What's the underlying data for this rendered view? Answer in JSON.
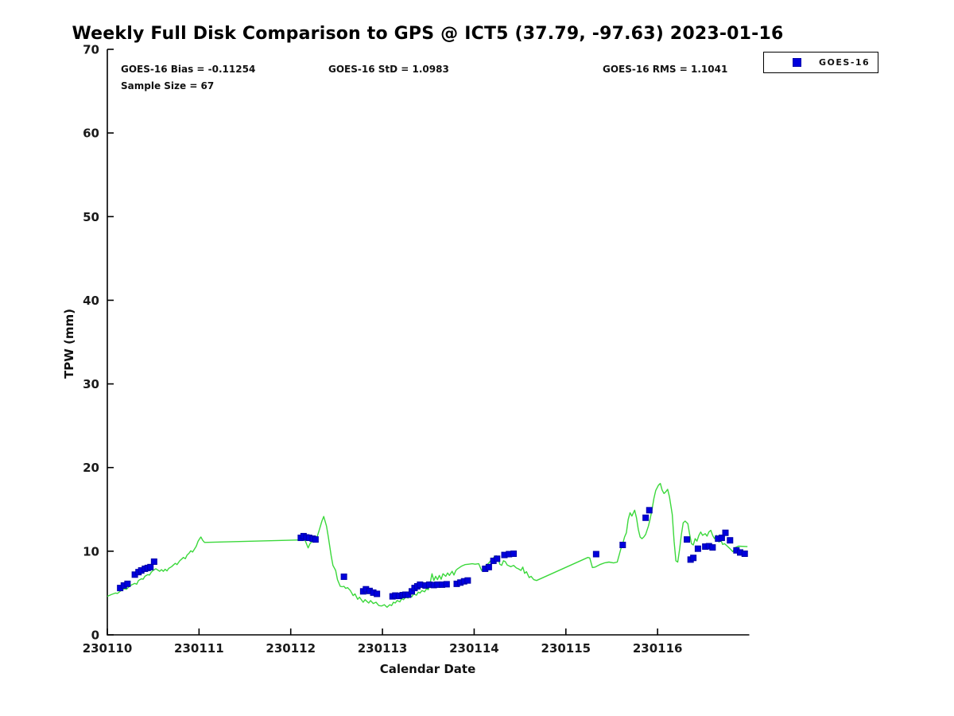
{
  "title": "Weekly Full Disk Comparison to GPS @ ICT5 (37.79, -97.63) 2023-01-16",
  "stats": {
    "bias": "GOES-16 Bias = -0.11254",
    "std": "GOES-16 StD = 1.0983",
    "rms": "GOES-16 RMS = 1.1041",
    "sample": "Sample Size = 67"
  },
  "legend": {
    "label": "GOES-16"
  },
  "colors": {
    "gps_line": "#3bd83b",
    "goes_marker_fill": "#0000dd",
    "goes_marker_edge": "#0000aa",
    "axis": "#000000",
    "tick_text": "#1a1a1a"
  },
  "chart_data": {
    "type": "line+scatter",
    "title": "Weekly Full Disk Comparison to GPS @ ICT5 (37.79, -97.63) 2023-01-16",
    "xlabel": "Calendar Date",
    "ylabel": "TPW (mm)",
    "xlim": [
      0,
      7
    ],
    "ylim": [
      0,
      70
    ],
    "y_ticks": [
      0,
      10,
      20,
      30,
      40,
      50,
      60,
      70
    ],
    "x_tick_positions": [
      0,
      1,
      2,
      3,
      4,
      5,
      6
    ],
    "x_tick_labels": [
      "230110",
      "230111",
      "230112",
      "230113",
      "230114",
      "230115",
      "230116"
    ],
    "grid": false,
    "legend_position": "top-right-outside",
    "annotations": [
      "GOES-16 Bias = -0.11254",
      "GOES-16 StD = 1.0983",
      "GOES-16 RMS = 1.1041",
      "Sample Size = 67"
    ],
    "x_unit": "days since 230110 00Z (tick value = YYMMDD)",
    "series": [
      {
        "name": "GPS",
        "type": "line",
        "color": "#3bd83b",
        "points": [
          [
            0.0,
            4.6
          ],
          [
            0.04,
            4.8
          ],
          [
            0.09,
            5.0
          ],
          [
            0.11,
            4.95
          ],
          [
            0.15,
            5.3
          ],
          [
            0.18,
            5.5
          ],
          [
            0.21,
            5.45
          ],
          [
            0.24,
            5.8
          ],
          [
            0.27,
            6.0
          ],
          [
            0.3,
            6.15
          ],
          [
            0.32,
            6.05
          ],
          [
            0.34,
            6.5
          ],
          [
            0.37,
            6.7
          ],
          [
            0.39,
            6.65
          ],
          [
            0.41,
            7.0
          ],
          [
            0.44,
            7.2
          ],
          [
            0.46,
            7.15
          ],
          [
            0.48,
            7.5
          ],
          [
            0.5,
            7.7
          ],
          [
            0.53,
            7.9
          ],
          [
            0.55,
            7.75
          ],
          [
            0.57,
            7.6
          ],
          [
            0.59,
            7.8
          ],
          [
            0.61,
            7.6
          ],
          [
            0.63,
            7.85
          ],
          [
            0.65,
            7.65
          ],
          [
            0.67,
            7.95
          ],
          [
            0.7,
            8.15
          ],
          [
            0.72,
            8.35
          ],
          [
            0.74,
            8.55
          ],
          [
            0.76,
            8.4
          ],
          [
            0.79,
            8.85
          ],
          [
            0.81,
            9.05
          ],
          [
            0.83,
            9.25
          ],
          [
            0.85,
            9.1
          ],
          [
            0.87,
            9.55
          ],
          [
            0.89,
            9.75
          ],
          [
            0.91,
            10.05
          ],
          [
            0.93,
            9.9
          ],
          [
            0.95,
            10.25
          ],
          [
            0.97,
            10.6
          ],
          [
            0.99,
            11.2
          ],
          [
            1.01,
            11.55
          ],
          [
            1.02,
            11.7
          ],
          [
            1.04,
            11.3
          ],
          [
            1.06,
            11.05
          ],
          [
            2.11,
            11.35
          ],
          [
            2.14,
            11.5
          ],
          [
            2.16,
            11.2
          ],
          [
            2.19,
            10.4
          ],
          [
            2.21,
            10.9
          ],
          [
            2.24,
            11.25
          ],
          [
            2.28,
            11.45
          ],
          [
            2.31,
            12.5
          ],
          [
            2.34,
            13.6
          ],
          [
            2.36,
            14.15
          ],
          [
            2.39,
            13.0
          ],
          [
            2.41,
            11.7
          ],
          [
            2.44,
            9.5
          ],
          [
            2.46,
            8.3
          ],
          [
            2.49,
            7.7
          ],
          [
            2.51,
            6.6
          ],
          [
            2.54,
            5.8
          ],
          [
            2.56,
            5.75
          ],
          [
            2.58,
            5.8
          ],
          [
            2.6,
            5.55
          ],
          [
            2.62,
            5.65
          ],
          [
            2.65,
            5.3
          ],
          [
            2.68,
            4.7
          ],
          [
            2.7,
            4.9
          ],
          [
            2.73,
            4.25
          ],
          [
            2.75,
            4.5
          ],
          [
            2.79,
            3.9
          ],
          [
            2.81,
            4.2
          ],
          [
            2.85,
            3.8
          ],
          [
            2.87,
            4.1
          ],
          [
            2.9,
            3.75
          ],
          [
            2.93,
            3.9
          ],
          [
            2.96,
            3.5
          ],
          [
            2.99,
            3.45
          ],
          [
            3.02,
            3.6
          ],
          [
            3.05,
            3.3
          ],
          [
            3.08,
            3.6
          ],
          [
            3.1,
            3.5
          ],
          [
            3.12,
            3.9
          ],
          [
            3.14,
            3.8
          ],
          [
            3.16,
            4.1
          ],
          [
            3.19,
            3.95
          ],
          [
            3.21,
            4.35
          ],
          [
            3.23,
            4.2
          ],
          [
            3.25,
            4.5
          ],
          [
            3.28,
            4.4
          ],
          [
            3.3,
            4.7
          ],
          [
            3.32,
            4.55
          ],
          [
            3.34,
            4.9
          ],
          [
            3.37,
            4.75
          ],
          [
            3.39,
            5.1
          ],
          [
            3.41,
            5.0
          ],
          [
            3.43,
            5.3
          ],
          [
            3.46,
            5.15
          ],
          [
            3.48,
            5.5
          ],
          [
            3.5,
            5.4
          ],
          [
            3.52,
            6.2
          ],
          [
            3.54,
            7.3
          ],
          [
            3.56,
            6.5
          ],
          [
            3.58,
            7.0
          ],
          [
            3.6,
            6.6
          ],
          [
            3.62,
            7.1
          ],
          [
            3.64,
            6.65
          ],
          [
            3.66,
            7.3
          ],
          [
            3.69,
            7.0
          ],
          [
            3.71,
            7.4
          ],
          [
            3.73,
            7.1
          ],
          [
            3.76,
            7.6
          ],
          [
            3.78,
            7.15
          ],
          [
            3.8,
            7.7
          ],
          [
            3.82,
            7.9
          ],
          [
            3.86,
            8.2
          ],
          [
            3.9,
            8.4
          ],
          [
            3.94,
            8.45
          ],
          [
            3.98,
            8.5
          ],
          [
            4.01,
            8.45
          ],
          [
            4.05,
            8.5
          ],
          [
            4.08,
            7.7
          ],
          [
            4.1,
            7.95
          ],
          [
            4.13,
            8.3
          ],
          [
            4.16,
            8.6
          ],
          [
            4.19,
            9.0
          ],
          [
            4.22,
            9.3
          ],
          [
            4.24,
            9.45
          ],
          [
            4.26,
            9.35
          ],
          [
            4.28,
            8.45
          ],
          [
            4.3,
            8.3
          ],
          [
            4.32,
            8.85
          ],
          [
            4.34,
            8.75
          ],
          [
            4.36,
            8.35
          ],
          [
            4.38,
            8.25
          ],
          [
            4.4,
            8.15
          ],
          [
            4.43,
            8.3
          ],
          [
            4.46,
            8.0
          ],
          [
            4.48,
            7.9
          ],
          [
            4.51,
            7.7
          ],
          [
            4.53,
            8.1
          ],
          [
            4.55,
            7.35
          ],
          [
            4.57,
            7.55
          ],
          [
            4.6,
            6.85
          ],
          [
            4.62,
            7.0
          ],
          [
            4.65,
            6.6
          ],
          [
            4.68,
            6.5
          ],
          [
            5.24,
            9.25
          ],
          [
            5.26,
            9.2
          ],
          [
            5.29,
            8.05
          ],
          [
            5.32,
            8.1
          ],
          [
            5.37,
            8.4
          ],
          [
            5.42,
            8.6
          ],
          [
            5.47,
            8.7
          ],
          [
            5.52,
            8.6
          ],
          [
            5.56,
            8.7
          ],
          [
            5.6,
            10.3
          ],
          [
            5.62,
            10.9
          ],
          [
            5.64,
            11.7
          ],
          [
            5.66,
            12.2
          ],
          [
            5.68,
            13.8
          ],
          [
            5.7,
            14.6
          ],
          [
            5.72,
            14.2
          ],
          [
            5.75,
            14.9
          ],
          [
            5.77,
            14.0
          ],
          [
            5.79,
            12.6
          ],
          [
            5.81,
            11.7
          ],
          [
            5.83,
            11.5
          ],
          [
            5.85,
            11.7
          ],
          [
            5.87,
            12.0
          ],
          [
            5.9,
            13.0
          ],
          [
            5.92,
            13.9
          ],
          [
            5.94,
            15.0
          ],
          [
            5.96,
            16.3
          ],
          [
            5.98,
            17.25
          ],
          [
            6.01,
            17.9
          ],
          [
            6.03,
            18.1
          ],
          [
            6.05,
            17.3
          ],
          [
            6.07,
            16.9
          ],
          [
            6.09,
            17.1
          ],
          [
            6.11,
            17.4
          ],
          [
            6.13,
            16.5
          ],
          [
            6.16,
            14.4
          ],
          [
            6.18,
            11.2
          ],
          [
            6.2,
            8.85
          ],
          [
            6.22,
            8.7
          ],
          [
            6.24,
            10.2
          ],
          [
            6.26,
            12.0
          ],
          [
            6.28,
            13.4
          ],
          [
            6.3,
            13.6
          ],
          [
            6.33,
            13.3
          ],
          [
            6.35,
            12.0
          ],
          [
            6.37,
            10.9
          ],
          [
            6.39,
            10.75
          ],
          [
            6.41,
            11.5
          ],
          [
            6.43,
            11.2
          ],
          [
            6.45,
            11.9
          ],
          [
            6.47,
            12.3
          ],
          [
            6.49,
            11.9
          ],
          [
            6.52,
            12.1
          ],
          [
            6.54,
            11.8
          ],
          [
            6.56,
            12.3
          ],
          [
            6.58,
            12.5
          ],
          [
            6.6,
            11.9
          ],
          [
            6.62,
            11.5
          ],
          [
            6.64,
            11.9
          ],
          [
            6.67,
            11.1
          ],
          [
            6.69,
            11.35
          ],
          [
            6.71,
            10.8
          ],
          [
            6.73,
            10.9
          ],
          [
            6.76,
            10.6
          ],
          [
            6.79,
            10.3
          ],
          [
            6.82,
            9.95
          ],
          [
            6.85,
            10.45
          ],
          [
            6.88,
            10.6
          ],
          [
            6.98,
            10.55
          ]
        ]
      },
      {
        "name": "GOES-16",
        "type": "scatter",
        "marker": "square",
        "color": "#0000dd",
        "sample_size": 67,
        "points": [
          [
            0.14,
            5.6
          ],
          [
            0.18,
            5.9
          ],
          [
            0.22,
            6.1
          ],
          [
            0.3,
            7.2
          ],
          [
            0.34,
            7.5
          ],
          [
            0.37,
            7.7
          ],
          [
            0.41,
            7.9
          ],
          [
            0.44,
            8.0
          ],
          [
            0.47,
            8.1
          ],
          [
            0.51,
            8.75
          ],
          [
            2.11,
            11.6
          ],
          [
            2.14,
            11.8
          ],
          [
            2.17,
            11.65
          ],
          [
            2.2,
            11.6
          ],
          [
            2.24,
            11.5
          ],
          [
            2.27,
            11.4
          ],
          [
            2.58,
            6.95
          ],
          [
            2.79,
            5.2
          ],
          [
            2.82,
            5.45
          ],
          [
            2.86,
            5.25
          ],
          [
            2.9,
            5.05
          ],
          [
            2.94,
            4.9
          ],
          [
            3.11,
            4.6
          ],
          [
            3.14,
            4.7
          ],
          [
            3.18,
            4.65
          ],
          [
            3.22,
            4.75
          ],
          [
            3.25,
            4.8
          ],
          [
            3.28,
            4.8
          ],
          [
            3.32,
            5.2
          ],
          [
            3.35,
            5.6
          ],
          [
            3.38,
            5.8
          ],
          [
            3.41,
            6.0
          ],
          [
            3.47,
            5.9
          ],
          [
            3.51,
            6.0
          ],
          [
            3.56,
            5.95
          ],
          [
            3.6,
            6.0
          ],
          [
            3.65,
            6.0
          ],
          [
            3.7,
            6.05
          ],
          [
            3.81,
            6.1
          ],
          [
            3.85,
            6.25
          ],
          [
            3.89,
            6.4
          ],
          [
            3.93,
            6.5
          ],
          [
            4.12,
            7.9
          ],
          [
            4.16,
            8.1
          ],
          [
            4.21,
            8.85
          ],
          [
            4.25,
            9.1
          ],
          [
            4.33,
            9.55
          ],
          [
            4.38,
            9.65
          ],
          [
            4.43,
            9.7
          ],
          [
            5.33,
            9.65
          ],
          [
            5.62,
            10.75
          ],
          [
            5.87,
            14.0
          ],
          [
            5.91,
            14.9
          ],
          [
            6.32,
            11.4
          ],
          [
            6.36,
            9.0
          ],
          [
            6.39,
            9.2
          ],
          [
            6.44,
            10.3
          ],
          [
            6.52,
            10.55
          ],
          [
            6.56,
            10.6
          ],
          [
            6.6,
            10.45
          ],
          [
            6.66,
            11.5
          ],
          [
            6.7,
            11.6
          ],
          [
            6.74,
            12.2
          ],
          [
            6.79,
            11.3
          ],
          [
            6.86,
            10.1
          ],
          [
            6.9,
            9.85
          ],
          [
            6.95,
            9.7
          ]
        ]
      }
    ]
  }
}
